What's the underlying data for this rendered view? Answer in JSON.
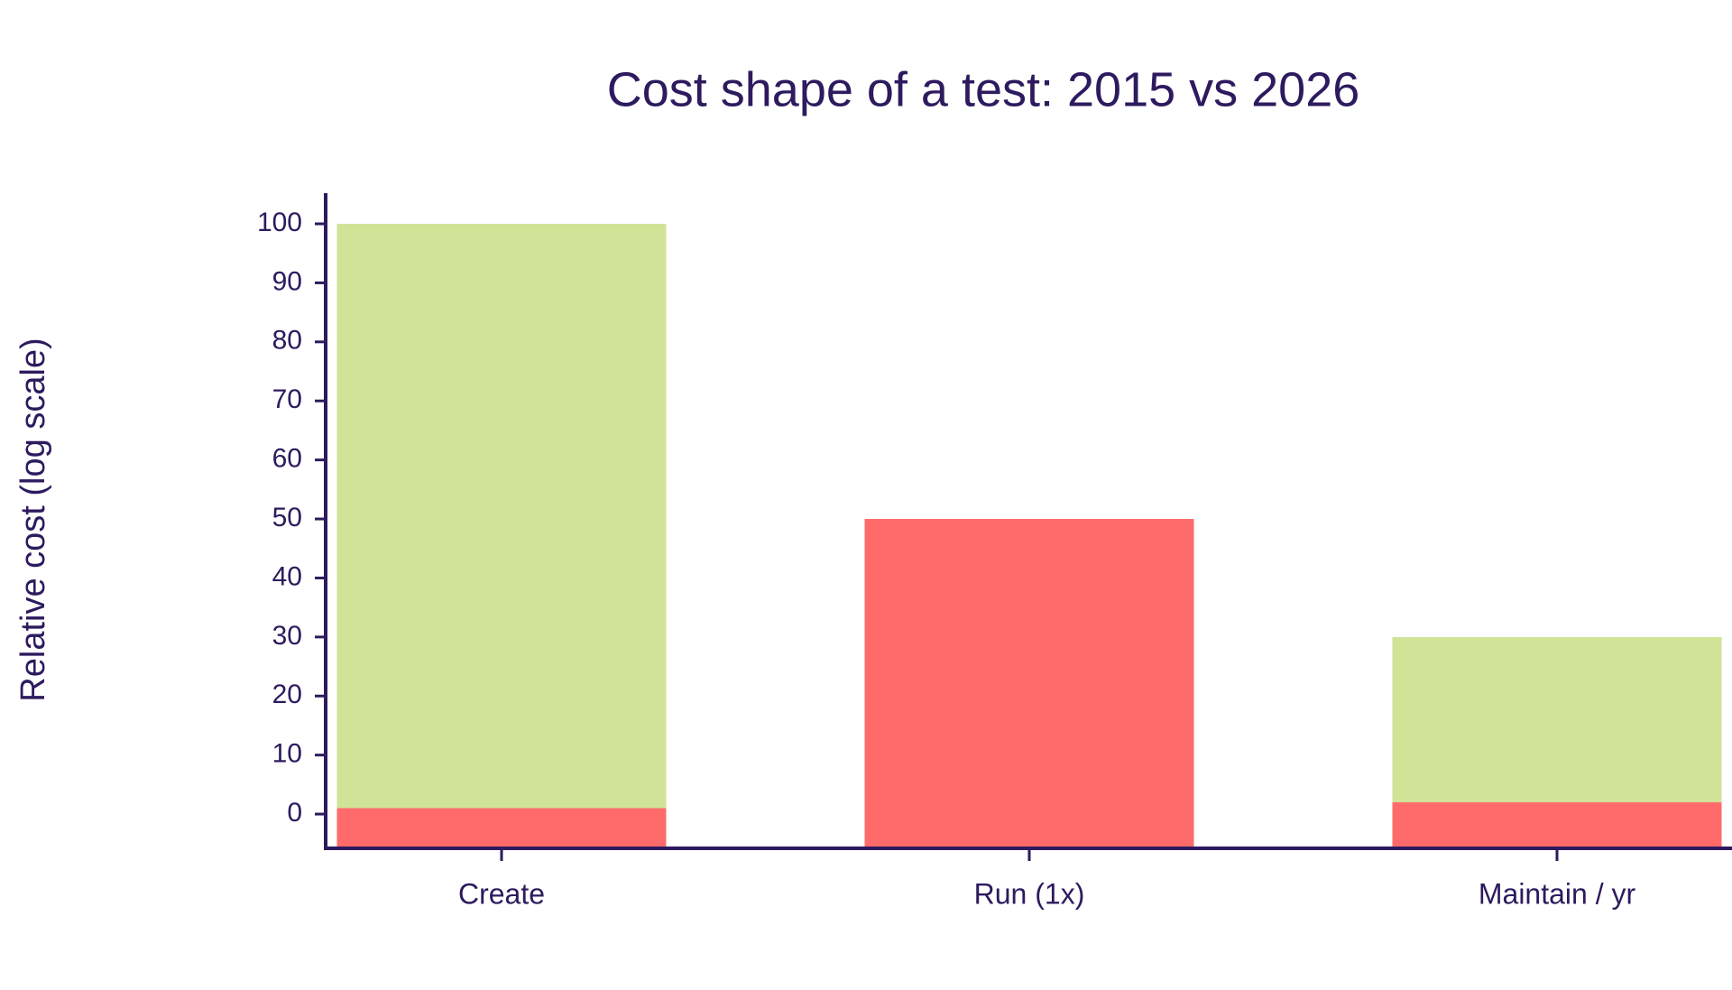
{
  "chart_data": {
    "type": "bar",
    "title": "Cost shape of a test: 2015 vs 2026",
    "y_label": "Relative cost (log scale)",
    "categories": [
      "Create",
      "Run (1x)",
      "Maintain / yr"
    ],
    "series": [
      {
        "color": "#d0e397",
        "values": [
          100,
          null,
          30
        ]
      },
      {
        "color": "#ff6b6b",
        "values": [
          1,
          50,
          2
        ]
      }
    ],
    "ylim": [
      -5.8,
      105.2
    ],
    "yticks": [
      0,
      10,
      20,
      30,
      40,
      50,
      60,
      70,
      80,
      90,
      100
    ],
    "overlay": true,
    "grid": false,
    "axis_color": "#2e1a5e"
  }
}
